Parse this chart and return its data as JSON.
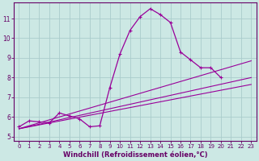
{
  "xlabel": "Windchill (Refroidissement éolien,°C)",
  "bg_color": "#cce8e4",
  "grid_color": "#aacccc",
  "line_color": "#990099",
  "spine_color": "#660066",
  "xlim": [
    -0.5,
    23.5
  ],
  "ylim": [
    4.8,
    11.8
  ],
  "yticks": [
    5,
    6,
    7,
    8,
    9,
    10,
    11
  ],
  "xticks": [
    0,
    1,
    2,
    3,
    4,
    5,
    6,
    7,
    8,
    9,
    10,
    11,
    12,
    13,
    14,
    15,
    16,
    17,
    18,
    19,
    20,
    21,
    22,
    23
  ],
  "series1_x": [
    0,
    1,
    2,
    3,
    4,
    5,
    6,
    7,
    8,
    9,
    10,
    11,
    12,
    13,
    14,
    15,
    16,
    17,
    18,
    19,
    20
  ],
  "series1_y": [
    5.5,
    5.8,
    5.75,
    5.7,
    6.2,
    6.05,
    5.9,
    5.5,
    5.55,
    7.5,
    9.2,
    10.4,
    11.1,
    11.5,
    11.2,
    10.8,
    9.3,
    8.9,
    8.5,
    8.5,
    8.0
  ],
  "line1_x": [
    0,
    23
  ],
  "line1_y": [
    5.4,
    8.85
  ],
  "line2_x": [
    0,
    23
  ],
  "line2_y": [
    5.4,
    8.0
  ],
  "line3_x": [
    0,
    23
  ],
  "line3_y": [
    5.4,
    7.65
  ],
  "tick_fontsize": 5.5,
  "xlabel_fontsize": 6.0,
  "xlabel_color": "#660066",
  "tick_color": "#660066"
}
